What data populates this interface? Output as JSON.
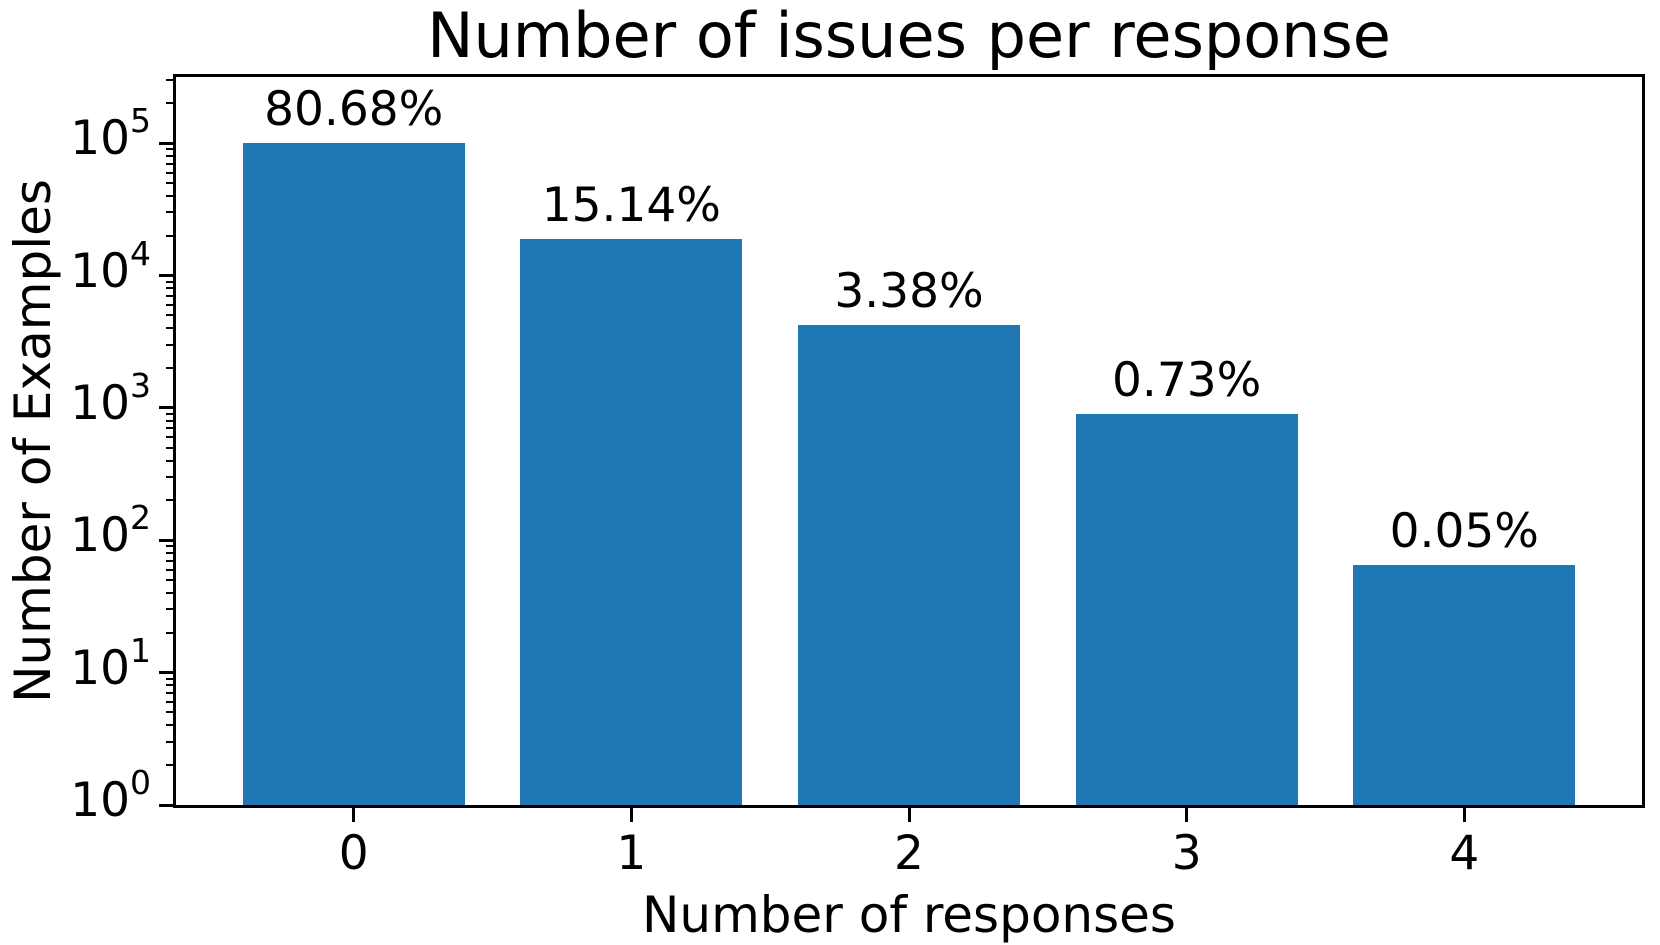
{
  "chart_data": {
    "type": "bar",
    "title": "Number of issues per response",
    "xlabel": "Number of responses",
    "ylabel": "Number of Examples",
    "categories": [
      "0",
      "1",
      "2",
      "3",
      "4"
    ],
    "values": [
      100000,
      18800,
      4200,
      905,
      65
    ],
    "bar_labels": [
      "80.68%",
      "15.14%",
      "3.38%",
      "0.73%",
      "0.05%"
    ],
    "bar_color": "#1f77b4",
    "yscale": "log",
    "ylim": [
      1,
      316228
    ],
    "xlim": [
      -0.64,
      4.64
    ],
    "bar_width": 0.8,
    "y_tick_exponents": [
      0,
      1,
      2,
      3,
      4,
      5
    ],
    "y_tick_base": "10",
    "grid": false,
    "legend_position": "none",
    "axis_color": "#000000",
    "background_color": "#ffffff"
  }
}
